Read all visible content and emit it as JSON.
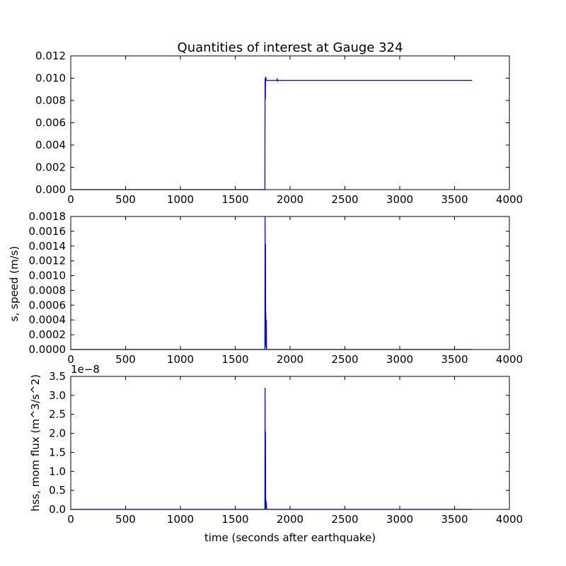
{
  "figure": {
    "title": "Quantities of interest at Gauge 324",
    "xlabel": "time (seconds after earthquake)",
    "line_color": "#0000ff"
  },
  "chart_data": [
    {
      "type": "line",
      "title": "Quantities of interest at Gauge 324",
      "xlabel": "",
      "ylabel": "",
      "xlim": [
        0,
        4000
      ],
      "ylim": [
        0,
        0.012
      ],
      "x_ticks": [
        "0",
        "500",
        "1000",
        "1500",
        "2000",
        "2500",
        "3000",
        "3500",
        "4000"
      ],
      "y_ticks": [
        "0.000",
        "0.002",
        "0.004",
        "0.006",
        "0.008",
        "0.010",
        "0.012"
      ],
      "offset_text": "",
      "series": [
        {
          "x": [
            0,
            1760,
            1770,
            1772,
            1775,
            1777,
            1779,
            1782,
            1800,
            1880,
            1882,
            1885,
            1887,
            1890,
            3660
          ],
          "y": [
            0,
            0,
            0,
            0.01,
            0.0081,
            0.0101,
            0.0101,
            0.0098,
            0.0098,
            0.0098,
            0.01,
            0.0097,
            0.0098,
            0.0098,
            0.0098
          ]
        }
      ]
    },
    {
      "type": "line",
      "xlabel": "",
      "ylabel": "s, speed (m/s)",
      "xlim": [
        0,
        4000
      ],
      "ylim": [
        0,
        0.0018
      ],
      "x_ticks": [
        "0",
        "500",
        "1000",
        "1500",
        "2000",
        "2500",
        "3000",
        "3500",
        "4000"
      ],
      "y_ticks": [
        "0.0000",
        "0.0002",
        "0.0004",
        "0.0006",
        "0.0008",
        "0.0010",
        "0.0012",
        "0.0014",
        "0.0016",
        "0.0018"
      ],
      "offset_text": "",
      "series": [
        {
          "x": [
            0,
            1765,
            1770,
            1772,
            1774,
            1776,
            1778,
            1779,
            1781,
            1783,
            1785,
            1787,
            1790,
            3660
          ],
          "y": [
            0,
            0,
            2e-05,
            0.0018,
            0.0002,
            0.00143,
            5e-05,
            0.0005,
            2e-05,
            0.0004,
            1e-05,
            1e-05,
            0,
            0
          ]
        }
      ]
    },
    {
      "type": "line",
      "xlabel": "time (seconds after earthquake)",
      "ylabel": "hss, mom flux (m^3/s^2)",
      "xlim": [
        0,
        4000
      ],
      "ylim": [
        0,
        3.5
      ],
      "x_ticks": [
        "0",
        "500",
        "1000",
        "1500",
        "2000",
        "2500",
        "3000",
        "3500",
        "4000"
      ],
      "y_ticks": [
        "0.0",
        "0.5",
        "1.0",
        "1.5",
        "2.0",
        "2.5",
        "3.0",
        "3.5"
      ],
      "offset_text": "1e−8",
      "series": [
        {
          "x": [
            0,
            1765,
            1770,
            1772,
            1774,
            1776,
            1778,
            1779,
            1781,
            1783,
            1786,
            1790,
            3660
          ],
          "y": [
            0,
            0,
            0.02,
            3.2,
            0.05,
            2.05,
            0.03,
            0.25,
            0.01,
            0.2,
            0.01,
            0,
            0
          ]
        }
      ]
    }
  ]
}
